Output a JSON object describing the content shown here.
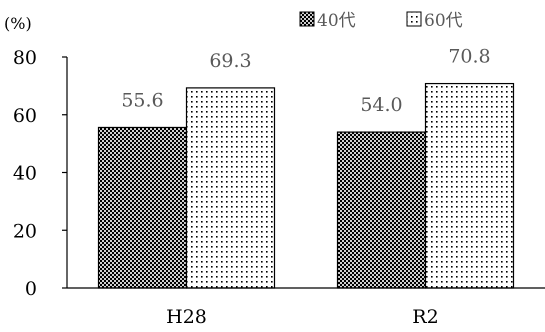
{
  "chart_data": {
    "type": "bar",
    "unit_label": "(%)",
    "categories": [
      "H28",
      "R2"
    ],
    "series": [
      {
        "name": "40代",
        "values": [
          55.6,
          54.0
        ],
        "labels": [
          "55.6",
          "54.0"
        ],
        "pattern": "dense-dots"
      },
      {
        "name": "60代",
        "values": [
          69.3,
          70.8
        ],
        "labels": [
          "69.3",
          "70.8"
        ],
        "pattern": "sparse-dots"
      }
    ],
    "ylim": [
      0,
      80
    ],
    "yticks": [
      0,
      20,
      40,
      60,
      80
    ],
    "legend_position": "top-right",
    "grid": false
  }
}
